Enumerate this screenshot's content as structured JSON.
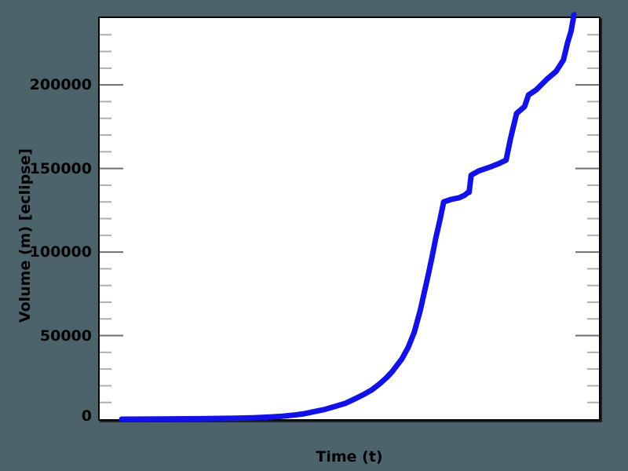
{
  "colors": {
    "page_background": "#4d636b",
    "plot_background": "#ffffff",
    "frame": "#000000",
    "line": "#1212e6",
    "major_tick": "#6e6e6e",
    "minor_tick": "#aeaeae",
    "text": "#000000"
  },
  "chart_data": {
    "type": "line",
    "title": "",
    "xlabel": "Time (t)",
    "ylabel": "Volume (m) [eclipse]",
    "grid": false,
    "legend": false,
    "x_axis": {
      "min": 0,
      "max": 100,
      "tick_labels": []
    },
    "y_axis": {
      "min": 0,
      "max": 240000,
      "major_tick_step": 50000,
      "minor_tick_step": 10000,
      "tick_values": [
        0,
        50000,
        100000,
        150000,
        200000
      ],
      "tick_labels": [
        "0",
        "50000",
        "100000",
        "150000",
        "200000"
      ]
    },
    "series": [
      {
        "name": "volume",
        "color": "#1212e6",
        "line_width": 7,
        "x": [
          4.4,
          12,
          20,
          27.2,
          31,
          34,
          36.6,
          39,
          41,
          42.9,
          45,
          47,
          49.2,
          51,
          53,
          54.5,
          56,
          57.5,
          58.6,
          60.5,
          61.8,
          63,
          64.2,
          65.7,
          66.5,
          67.3,
          68.2,
          68.9,
          70.4,
          72,
          73.1,
          73.7,
          74,
          74.4,
          75.9,
          78.3,
          80,
          81.4,
          82.3,
          83.5,
          85.1,
          85.9,
          87.4,
          89.6,
          91.4,
          92.9,
          93.7,
          94.4,
          95
        ],
        "y": [
          0,
          100,
          300,
          600,
          900,
          1300,
          1800,
          2500,
          3300,
          4500,
          5800,
          7500,
          9500,
          12000,
          15000,
          17500,
          21000,
          25000,
          28500,
          36000,
          43000,
          52000,
          65000,
          85000,
          96000,
          108000,
          120000,
          130000,
          131500,
          132500,
          134000,
          135500,
          135800,
          146000,
          148500,
          151000,
          153000,
          155000,
          168000,
          183000,
          187000,
          194000,
          197000,
          203500,
          208000,
          215000,
          225000,
          232000,
          242000
        ]
      }
    ]
  }
}
